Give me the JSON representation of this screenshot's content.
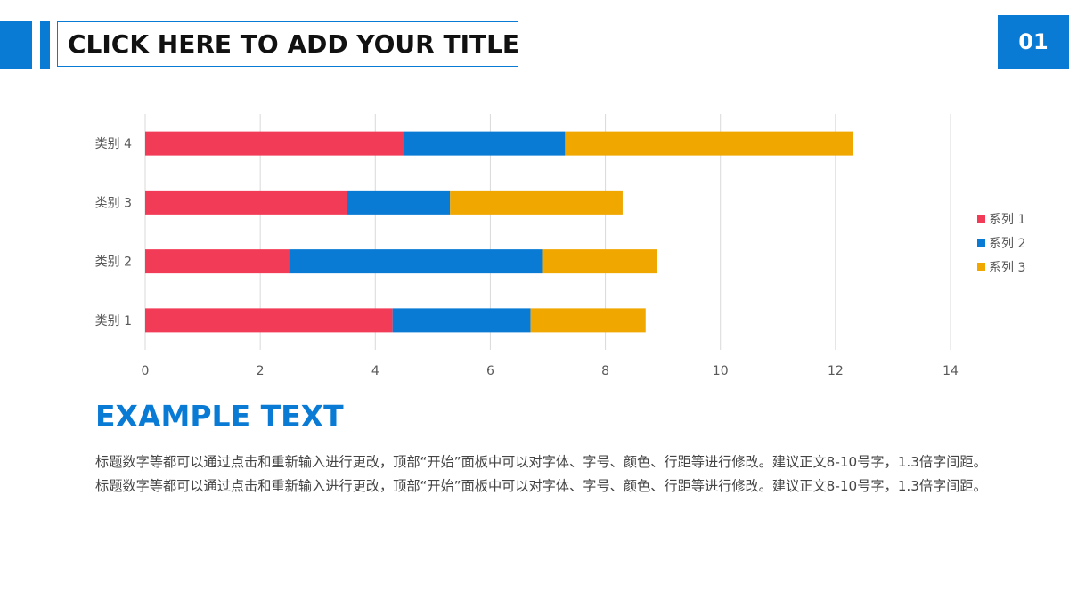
{
  "header": {
    "title": "CLICK HERE TO ADD YOUR TITLE",
    "page_number": "01"
  },
  "colors": {
    "accent": "#0a7bd5",
    "series": [
      "#f23c57",
      "#0a7bd5",
      "#f0a800"
    ]
  },
  "chart_data": {
    "type": "bar",
    "orientation": "horizontal",
    "stacked": true,
    "categories": [
      "类别 1",
      "类别 2",
      "类别 3",
      "类别 4"
    ],
    "series": [
      {
        "name": "系列 1",
        "values": [
          4.3,
          2.5,
          3.5,
          4.5
        ]
      },
      {
        "name": "系列 2",
        "values": [
          2.4,
          4.4,
          1.8,
          2.8
        ]
      },
      {
        "name": "系列 3",
        "values": [
          2.0,
          2.0,
          3.0,
          5.0
        ]
      }
    ],
    "xlim": [
      0,
      14
    ],
    "xticks": [
      "0",
      "2",
      "4",
      "6",
      "8",
      "10",
      "12",
      "14"
    ],
    "grid": "vertical",
    "legend": "right"
  },
  "content": {
    "heading": "EXAMPLE TEXT",
    "paragraph": "标题数字等都可以通过点击和重新输入进行更改，顶部“开始”面板中可以对字体、字号、颜色、行距等进行修改。建议正文8-10号字，1.3倍字间距。标题数字等都可以通过点击和重新输入进行更改，顶部“开始”面板中可以对字体、字号、颜色、行距等进行修改。建议正文8-10号字，1.3倍字间距。"
  }
}
